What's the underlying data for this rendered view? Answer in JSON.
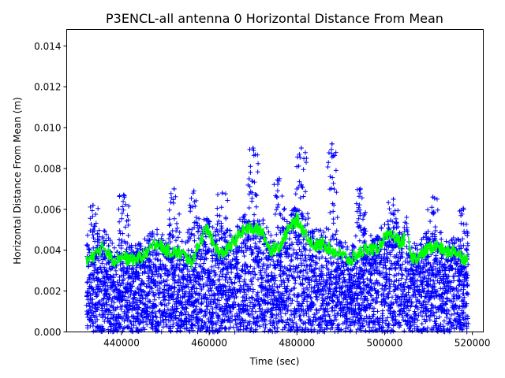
{
  "chart_data": {
    "type": "scatter",
    "title": "P3ENCL-all antenna 0 Horizontal Distance From Mean",
    "xlabel": "Time (sec)",
    "ylabel": "Horizontal Distance From Mean (m)",
    "xlim": [
      427500,
      522500
    ],
    "ylim": [
      0,
      0.0148
    ],
    "xticks": [
      440000,
      460000,
      480000,
      500000,
      520000
    ],
    "xtick_labels": [
      "440000",
      "460000",
      "480000",
      "500000",
      "520000"
    ],
    "yticks": [
      0.0,
      0.002,
      0.004,
      0.006,
      0.008,
      0.01,
      0.012,
      0.014
    ],
    "ytick_labels": [
      "0.000",
      "0.002",
      "0.004",
      "0.006",
      "0.008",
      "0.010",
      "0.012",
      "0.014"
    ],
    "grid": false,
    "series": [
      {
        "style": "markers '+'",
        "color": "#0000ff",
        "x_range": [
          432000,
          519000
        ],
        "y_range": [
          0.0,
          0.0092
        ],
        "peak_points": [
          {
            "x": 433500,
            "y": 0.0062
          },
          {
            "x": 440500,
            "y": 0.0067
          },
          {
            "x": 452000,
            "y": 0.007
          },
          {
            "x": 456500,
            "y": 0.0069
          },
          {
            "x": 463000,
            "y": 0.0068
          },
          {
            "x": 470000,
            "y": 0.009
          },
          {
            "x": 476000,
            "y": 0.0075
          },
          {
            "x": 481000,
            "y": 0.009
          },
          {
            "x": 488000,
            "y": 0.0092
          },
          {
            "x": 494500,
            "y": 0.007
          },
          {
            "x": 502000,
            "y": 0.0065
          },
          {
            "x": 511000,
            "y": 0.0066
          },
          {
            "x": 518000,
            "y": 0.006
          }
        ]
      },
      {
        "style": "line",
        "color": "#00ff00",
        "x": [
          432000,
          434000,
          436000,
          438000,
          440000,
          442000,
          444000,
          446000,
          448000,
          450000,
          452000,
          454000,
          456000,
          458000,
          459500,
          461000,
          462500,
          464000,
          466000,
          468000,
          470000,
          472000,
          474000,
          476000,
          478000,
          480000,
          482000,
          484000,
          486000,
          488000,
          490000,
          492000,
          494000,
          496000,
          498000,
          500000,
          502000,
          504000,
          505000,
          506000,
          508000,
          510000,
          512000,
          514000,
          516000,
          518000,
          519000
        ],
        "y": [
          0.0034,
          0.0038,
          0.0042,
          0.0035,
          0.0037,
          0.0035,
          0.0036,
          0.0039,
          0.0044,
          0.004,
          0.0039,
          0.0038,
          0.0034,
          0.0045,
          0.0051,
          0.0043,
          0.0038,
          0.004,
          0.0045,
          0.005,
          0.0051,
          0.0049,
          0.004,
          0.0042,
          0.005,
          0.0055,
          0.0048,
          0.0042,
          0.0043,
          0.004,
          0.0038,
          0.0035,
          0.0038,
          0.0041,
          0.004,
          0.0046,
          0.0047,
          0.0043,
          0.0049,
          0.0036,
          0.0037,
          0.0041,
          0.0042,
          0.0039,
          0.004,
          0.0036,
          0.0035
        ]
      }
    ]
  }
}
